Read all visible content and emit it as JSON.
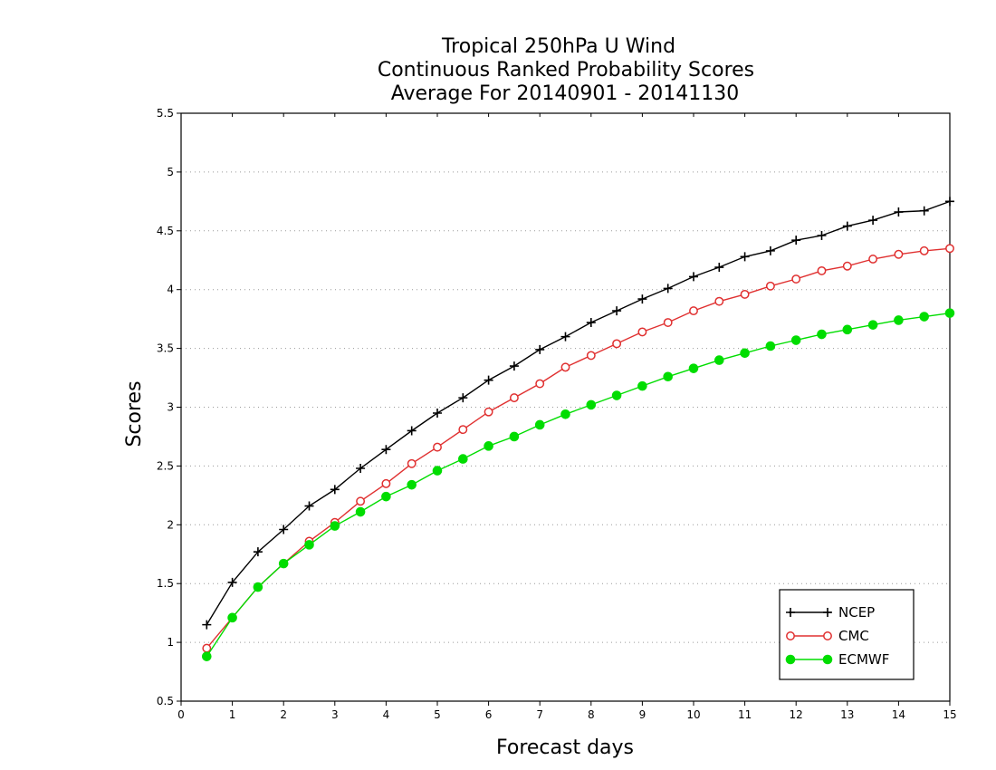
{
  "chart_data": {
    "type": "line",
    "title": [
      "Tropical 250hPa U Wind",
      "Continuous Ranked Probability Scores",
      "Average For 20140901 - 20141130"
    ],
    "xlabel": "Forecast days",
    "ylabel": "Scores",
    "xlim": [
      0,
      15
    ],
    "ylim": [
      0.5,
      5.5
    ],
    "xticks": [
      "0",
      "1",
      "2",
      "3",
      "4",
      "5",
      "6",
      "7",
      "8",
      "9",
      "10",
      "11",
      "12",
      "13",
      "14",
      "15"
    ],
    "yticks": [
      "0.5",
      "1",
      "1.5",
      "2",
      "2.5",
      "3",
      "3.5",
      "4",
      "4.5",
      "5",
      "5.5"
    ],
    "grid": "horizontal dotted",
    "legend_position": "bottom-right",
    "x": [
      0.5,
      1,
      1.5,
      2,
      2.5,
      3,
      3.5,
      4,
      4.5,
      5,
      5.5,
      6,
      6.5,
      7,
      7.5,
      8,
      8.5,
      9,
      9.5,
      10,
      10.5,
      11,
      11.5,
      12,
      12.5,
      13,
      13.5,
      14,
      14.5,
      15
    ],
    "series": [
      {
        "name": "NCEP",
        "color": "#000000",
        "marker": "plus",
        "values": [
          1.15,
          1.51,
          1.77,
          1.96,
          2.16,
          2.3,
          2.48,
          2.64,
          2.8,
          2.95,
          3.08,
          3.23,
          3.35,
          3.49,
          3.6,
          3.72,
          3.82,
          3.92,
          4.01,
          4.11,
          4.19,
          4.28,
          4.33,
          4.42,
          4.46,
          4.54,
          4.59,
          4.66,
          4.67,
          4.75
        ]
      },
      {
        "name": "CMC",
        "color": "#e03030",
        "marker": "open-circle",
        "values": [
          0.95,
          1.21,
          1.47,
          1.67,
          1.86,
          2.02,
          2.2,
          2.35,
          2.52,
          2.66,
          2.81,
          2.96,
          3.08,
          3.2,
          3.34,
          3.44,
          3.54,
          3.64,
          3.72,
          3.82,
          3.9,
          3.96,
          4.03,
          4.09,
          4.16,
          4.2,
          4.26,
          4.3,
          4.33,
          4.35
        ]
      },
      {
        "name": "ECMWF",
        "color": "#00dd00",
        "marker": "filled-circle",
        "values": [
          0.88,
          1.21,
          1.47,
          1.67,
          1.83,
          1.99,
          2.11,
          2.24,
          2.34,
          2.46,
          2.56,
          2.67,
          2.75,
          2.85,
          2.94,
          3.02,
          3.1,
          3.18,
          3.26,
          3.33,
          3.4,
          3.46,
          3.52,
          3.57,
          3.62,
          3.66,
          3.7,
          3.74,
          3.77,
          3.8
        ]
      }
    ]
  }
}
